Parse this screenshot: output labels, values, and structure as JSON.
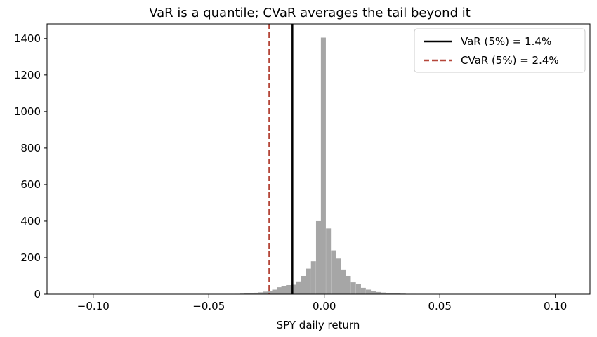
{
  "chart_data": {
    "type": "bar",
    "title": "VaR is a quantile; CVaR averages the tail beyond it",
    "xlabel": "SPY daily return",
    "ylabel": "",
    "xlim": [
      -0.12,
      0.115
    ],
    "ylim": [
      0,
      1480
    ],
    "xticks": [
      -0.1,
      -0.05,
      0.0,
      0.05,
      0.1
    ],
    "xtick_labels": [
      "−0.10",
      "−0.05",
      "0.00",
      "0.05",
      "0.10"
    ],
    "yticks": [
      0,
      200,
      400,
      600,
      800,
      1000,
      1200,
      1400
    ],
    "ytick_labels": [
      "0",
      "200",
      "400",
      "600",
      "800",
      "1000",
      "1200",
      "1400"
    ],
    "bar_color": "#a6a6a6",
    "bin_width": 0.00215,
    "bins": [
      {
        "x": -0.1085,
        "count": 1
      },
      {
        "x": -0.0955,
        "count": 1
      },
      {
        "x": -0.0765,
        "count": 1
      },
      {
        "x": -0.0585,
        "count": 1
      },
      {
        "x": -0.0505,
        "count": 1
      },
      {
        "x": -0.0435,
        "count": 1
      },
      {
        "x": -0.0415,
        "count": 1
      },
      {
        "x": -0.0395,
        "count": 1
      },
      {
        "x": -0.0375,
        "count": 2
      },
      {
        "x": -0.0355,
        "count": 3
      },
      {
        "x": -0.0335,
        "count": 5
      },
      {
        "x": -0.0315,
        "count": 6
      },
      {
        "x": -0.0295,
        "count": 8
      },
      {
        "x": -0.0275,
        "count": 10
      },
      {
        "x": -0.0255,
        "count": 14
      },
      {
        "x": -0.0235,
        "count": 18
      },
      {
        "x": -0.0215,
        "count": 25
      },
      {
        "x": -0.0195,
        "count": 38
      },
      {
        "x": -0.0175,
        "count": 45
      },
      {
        "x": -0.0155,
        "count": 50
      },
      {
        "x": -0.0133,
        "count": 52
      },
      {
        "x": -0.0112,
        "count": 70
      },
      {
        "x": -0.009,
        "count": 100
      },
      {
        "x": -0.0068,
        "count": 140
      },
      {
        "x": -0.0047,
        "count": 180
      },
      {
        "x": -0.0025,
        "count": 400
      },
      {
        "x": -0.0004,
        "count": 1405
      },
      {
        "x": 0.0018,
        "count": 360
      },
      {
        "x": 0.004,
        "count": 240
      },
      {
        "x": 0.0061,
        "count": 195
      },
      {
        "x": 0.0083,
        "count": 135
      },
      {
        "x": 0.0104,
        "count": 100
      },
      {
        "x": 0.0126,
        "count": 65
      },
      {
        "x": 0.0148,
        "count": 55
      },
      {
        "x": 0.0169,
        "count": 35
      },
      {
        "x": 0.0191,
        "count": 25
      },
      {
        "x": 0.0212,
        "count": 18
      },
      {
        "x": 0.0234,
        "count": 12
      },
      {
        "x": 0.0256,
        "count": 9
      },
      {
        "x": 0.0277,
        "count": 7
      },
      {
        "x": 0.0299,
        "count": 5
      },
      {
        "x": 0.032,
        "count": 4
      },
      {
        "x": 0.0342,
        "count": 3
      },
      {
        "x": 0.0385,
        "count": 2
      },
      {
        "x": 0.0445,
        "count": 1
      },
      {
        "x": 0.0495,
        "count": 1
      },
      {
        "x": 0.0505,
        "count": 1
      },
      {
        "x": 0.0585,
        "count": 1
      },
      {
        "x": 0.0675,
        "count": 1
      },
      {
        "x": 0.0685,
        "count": 1
      },
      {
        "x": 0.0855,
        "count": 1
      },
      {
        "x": 0.0895,
        "count": 1
      },
      {
        "x": 0.1035,
        "count": 1
      }
    ],
    "vlines": [
      {
        "x": -0.0138,
        "label": "VaR (5%) = 1.4%",
        "color": "#000000",
        "style": "solid"
      },
      {
        "x": -0.0238,
        "label": "CVaR (5%) = 2.4%",
        "color": "#b5473a",
        "style": "dashed"
      }
    ],
    "legend_placement": "top-right",
    "grid": false
  }
}
